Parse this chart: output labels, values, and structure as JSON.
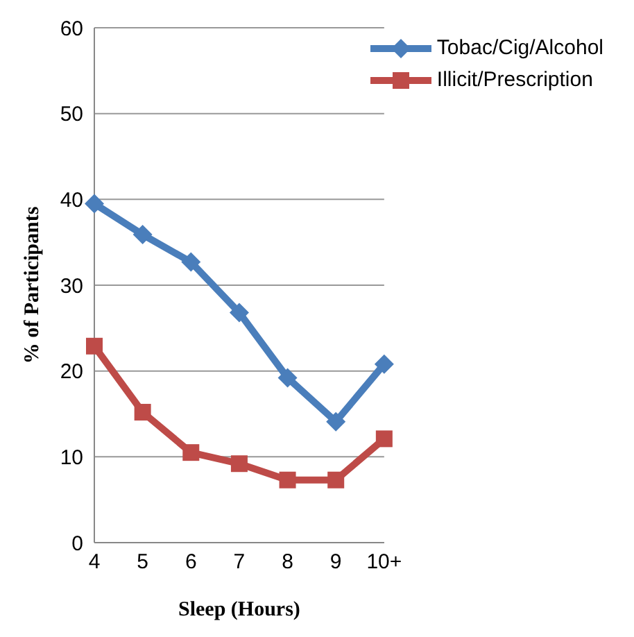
{
  "chart_data": {
    "type": "line",
    "xlabel": "Sleep (Hours)",
    "ylabel": "% of Participants",
    "categories": [
      "4",
      "5",
      "6",
      "7",
      "8",
      "9",
      "10+"
    ],
    "series": [
      {
        "name": "Tobac/Cig/Alcohol",
        "color": "#4a7ebb",
        "marker": "diamond",
        "values": [
          39.5,
          35.9,
          32.7,
          26.8,
          19.2,
          14.1,
          20.8
        ]
      },
      {
        "name": "Illicit/Prescription",
        "color": "#be4b48",
        "marker": "square",
        "values": [
          22.9,
          15.2,
          10.5,
          9.2,
          7.3,
          7.3,
          12.1
        ]
      }
    ],
    "ylim": [
      0,
      60
    ],
    "yticks": [
      0,
      10,
      20,
      30,
      40,
      50,
      60
    ],
    "grid": "y",
    "legend": "top right"
  }
}
